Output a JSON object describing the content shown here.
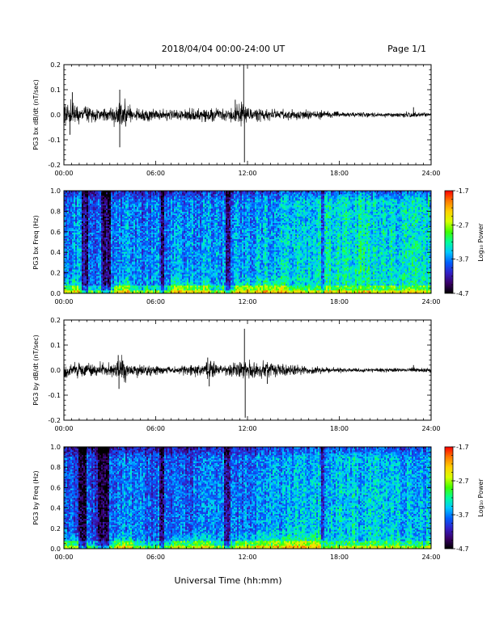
{
  "header": {
    "title": "2018/04/04  00:00-24:00 UT",
    "page": "Page 1/1"
  },
  "footer": {
    "xlabel": "Universal Time (hh:mm)"
  },
  "chart_data": [
    {
      "type": "line",
      "ylabel": "PG3 bx dB/dt (nT/sec)",
      "xlim": [
        "00:00",
        "24:00"
      ],
      "ylim": [
        -0.2,
        0.2
      ],
      "x_ticks": [
        "00:00",
        "06:00",
        "12:00",
        "18:00",
        "24:00"
      ],
      "y_ticks": [
        "-0.2",
        "-0.1",
        "0.0",
        "0.1",
        "0.2"
      ],
      "grid": false,
      "activity": {
        "x_hours": [
          0,
          1,
          2,
          3,
          3.8,
          4.5,
          6,
          7,
          8,
          9,
          10,
          11,
          11.6,
          11.8,
          12.2,
          13,
          14,
          15,
          16,
          17,
          18,
          19,
          20,
          21,
          22,
          22.8,
          23.4,
          24
        ],
        "amplitude": [
          0.06,
          0.045,
          0.04,
          0.035,
          0.08,
          0.03,
          0.03,
          0.025,
          0.03,
          0.035,
          0.03,
          0.035,
          0.06,
          0.05,
          0.035,
          0.03,
          0.025,
          0.025,
          0.025,
          0.02,
          0.015,
          0.012,
          0.012,
          0.01,
          0.01,
          0.015,
          0.01,
          0.01
        ]
      },
      "spikes": [
        {
          "x_hours": 3.65,
          "y": 0.1
        },
        {
          "x_hours": 3.65,
          "y": -0.13
        },
        {
          "x_hours": 11.75,
          "y": 0.21
        },
        {
          "x_hours": 11.8,
          "y": -0.19
        },
        {
          "x_hours": 11.2,
          "y": 0.06
        },
        {
          "x_hours": 0.55,
          "y": 0.09
        },
        {
          "x_hours": 0.4,
          "y": -0.08
        },
        {
          "x_hours": 22.85,
          "y": 0.03
        }
      ]
    },
    {
      "type": "heatmap",
      "ylabel": "PG3 bx Freq (Hz)",
      "xlim": [
        "00:00",
        "24:00"
      ],
      "ylim": [
        0.0,
        1.0
      ],
      "x_ticks": [
        "00:00",
        "06:00",
        "12:00",
        "18:00",
        "24:00"
      ],
      "y_ticks": [
        "0.0",
        "0.2",
        "0.4",
        "0.6",
        "0.8",
        "1.0"
      ],
      "colorbar": {
        "label": "Log₁₀ Power",
        "range": [
          -4.7,
          -1.7
        ],
        "ticks": [
          "-1.7",
          "-2.7",
          "-3.7",
          "-4.7"
        ],
        "colors": [
          "#000000",
          "#3a0068",
          "#3320c8",
          "#0060ff",
          "#00c8ff",
          "#00ff9a",
          "#40ff00",
          "#d8ff00",
          "#ffd000",
          "#ff7a00",
          "#ff0000"
        ]
      },
      "background_level_by_hour": [
        0.35,
        0.36,
        0.3,
        0.33,
        0.38,
        0.34,
        0.33,
        0.35,
        0.36,
        0.38,
        0.37,
        0.36,
        0.36,
        0.4,
        0.42,
        0.44,
        0.45,
        0.47,
        0.48,
        0.48,
        0.47,
        0.46,
        0.45,
        0.45,
        0.44
      ],
      "dark_bands_hours": [
        [
          1.2,
          1.6
        ],
        [
          2.4,
          3.1
        ],
        [
          6.3,
          6.6
        ],
        [
          10.6,
          10.9
        ],
        [
          16.8,
          17.0
        ]
      ],
      "low_freq_enhancements_hours": [
        [
          0.0,
          1.0
        ],
        [
          3.3,
          4.3
        ],
        [
          7.0,
          9.5
        ],
        [
          11.2,
          14.5
        ]
      ]
    },
    {
      "type": "line",
      "ylabel": "PG3 by dB/dt (nT/sec)",
      "xlim": [
        "00:00",
        "24:00"
      ],
      "ylim": [
        -0.2,
        0.2
      ],
      "x_ticks": [
        "00:00",
        "06:00",
        "12:00",
        "18:00",
        "24:00"
      ],
      "y_ticks": [
        "-0.2",
        "-0.1",
        "0.0",
        "0.1",
        "0.2"
      ],
      "grid": false,
      "activity": {
        "x_hours": [
          0,
          1,
          2,
          3,
          3.7,
          4.5,
          6,
          7,
          8,
          9,
          9.5,
          10,
          11,
          11.6,
          11.9,
          12.5,
          13.5,
          14.5,
          15,
          16,
          17,
          18,
          19,
          20,
          21,
          22,
          22.8,
          24
        ],
        "amplitude": [
          0.035,
          0.035,
          0.03,
          0.035,
          0.06,
          0.03,
          0.025,
          0.02,
          0.025,
          0.03,
          0.045,
          0.035,
          0.03,
          0.05,
          0.04,
          0.04,
          0.045,
          0.03,
          0.025,
          0.02,
          0.015,
          0.012,
          0.01,
          0.01,
          0.01,
          0.01,
          0.012,
          0.01
        ]
      },
      "spikes": [
        {
          "x_hours": 3.55,
          "y": 0.06
        },
        {
          "x_hours": 3.6,
          "y": -0.075
        },
        {
          "x_hours": 11.8,
          "y": 0.165
        },
        {
          "x_hours": 11.85,
          "y": -0.19
        },
        {
          "x_hours": 9.4,
          "y": 0.05
        },
        {
          "x_hours": 9.5,
          "y": -0.065
        },
        {
          "x_hours": 13.3,
          "y": -0.055
        },
        {
          "x_hours": 22.85,
          "y": 0.02
        }
      ]
    },
    {
      "type": "heatmap",
      "ylabel": "PG3 by Freq (Hz)",
      "xlim": [
        "00:00",
        "24:00"
      ],
      "ylim": [
        0.0,
        1.0
      ],
      "x_ticks": [
        "00:00",
        "06:00",
        "12:00",
        "18:00",
        "24:00"
      ],
      "y_ticks": [
        "0.0",
        "0.2",
        "0.4",
        "0.6",
        "0.8",
        "1.0"
      ],
      "colorbar": {
        "label": "Log₁₀ Power",
        "range": [
          -4.7,
          -1.7
        ],
        "ticks": [
          "-1.7",
          "-2.7",
          "-3.7",
          "-4.7"
        ],
        "colors": [
          "#000000",
          "#3a0068",
          "#3320c8",
          "#0060ff",
          "#00c8ff",
          "#00ff9a",
          "#40ff00",
          "#d8ff00",
          "#ffd000",
          "#ff7a00",
          "#ff0000"
        ]
      },
      "background_level_by_hour": [
        0.33,
        0.3,
        0.26,
        0.3,
        0.36,
        0.32,
        0.3,
        0.31,
        0.32,
        0.33,
        0.33,
        0.33,
        0.33,
        0.36,
        0.38,
        0.4,
        0.41,
        0.42,
        0.42,
        0.42,
        0.41,
        0.4,
        0.4,
        0.4,
        0.39
      ],
      "dark_bands_hours": [
        [
          1.0,
          1.5
        ],
        [
          2.2,
          3.0
        ],
        [
          6.2,
          6.6
        ],
        [
          10.5,
          10.9
        ],
        [
          16.8,
          17.0
        ]
      ],
      "low_freq_enhancements_hours": [
        [
          0.0,
          1.0
        ],
        [
          3.3,
          4.5
        ],
        [
          7.0,
          9.6
        ],
        [
          11.2,
          17.0
        ]
      ]
    }
  ]
}
